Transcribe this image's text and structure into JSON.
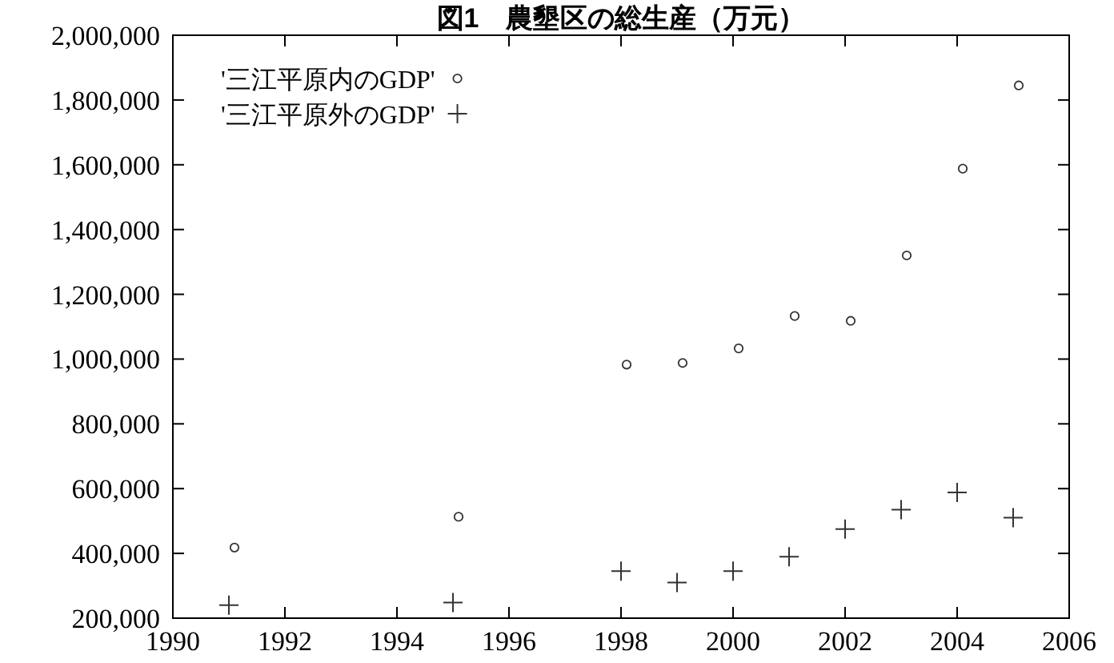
{
  "chart_data": {
    "type": "scatter",
    "title": "図1　農墾区の総生産（万元）",
    "xlim": [
      1990,
      2006
    ],
    "xticks": [
      1990,
      1992,
      1994,
      1996,
      1998,
      2000,
      2002,
      2004,
      2006
    ],
    "ylim": [
      200000,
      2000000
    ],
    "yticks": [
      {
        "value": 200000,
        "label": "200,000"
      },
      {
        "value": 400000,
        "label": "400,000"
      },
      {
        "value": 600000,
        "label": "600,000"
      },
      {
        "value": 800000,
        "label": "800,000"
      },
      {
        "value": 1000000,
        "label": "1,000,000"
      },
      {
        "value": 1200000,
        "label": "1,200,000"
      },
      {
        "value": 1400000,
        "label": "1,400,000"
      },
      {
        "value": 1600000,
        "label": "1,600,000"
      },
      {
        "value": 1800000,
        "label": "1,800,000"
      },
      {
        "value": 2000000,
        "label": "2,000,000"
      }
    ],
    "grid": false,
    "legend": "top left",
    "series": [
      {
        "name": "'三江平原内のGDP'",
        "color": "#333333",
        "marker": "circle",
        "x": [
          1991.1,
          1995.1,
          1998.1,
          1999.1,
          2000.1,
          2001.1,
          2002.1,
          2003.1,
          2004.1,
          2005.1
        ],
        "values": [
          418000,
          513000,
          983000,
          988000,
          1033000,
          1133000,
          1118000,
          1320000,
          1588000,
          1845000
        ]
      },
      {
        "name": "'三江平原外のGDP'",
        "color": "#333333",
        "marker": "cross",
        "x": [
          1991,
          1995,
          1998,
          1999,
          2000,
          2001,
          2002,
          2003,
          2004,
          2005
        ],
        "values": [
          240000,
          248000,
          345000,
          310000,
          345000,
          390000,
          475000,
          535000,
          588000,
          510000
        ]
      }
    ]
  }
}
